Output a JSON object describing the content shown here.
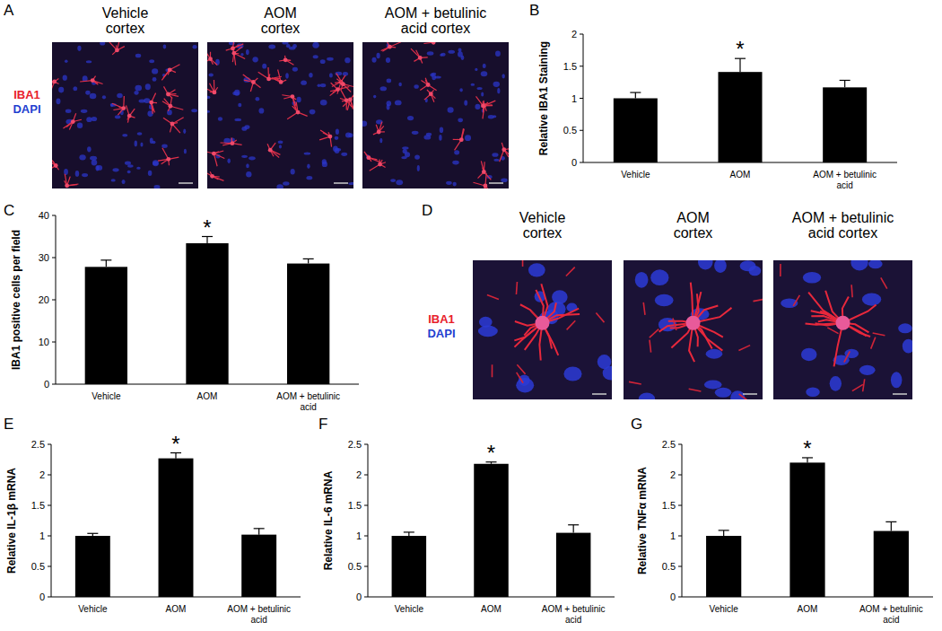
{
  "chart_data": [
    {
      "panel": "B",
      "type": "bar",
      "y_label": "Relative IBA1 Staining",
      "categories": [
        "Vehicle",
        "AOM",
        "AOM + betulinic acid"
      ],
      "values": [
        1.0,
        1.41,
        1.17
      ],
      "errors": [
        0.09,
        0.21,
        0.11
      ],
      "color": "#000000",
      "ylim": [
        0,
        2
      ],
      "yticks": [
        0,
        0.5,
        1,
        1.5,
        2
      ],
      "annotations": [
        {
          "text": "*",
          "category": "AOM"
        }
      ]
    },
    {
      "panel": "C",
      "type": "bar",
      "y_label": "IBA1 positive cells per field",
      "categories": [
        "Vehicle",
        "AOM",
        "AOM + betulinic acid"
      ],
      "values": [
        27.8,
        33.4,
        28.6
      ],
      "errors": [
        1.6,
        1.6,
        1.1
      ],
      "color": "#000000",
      "ylim": [
        0,
        40
      ],
      "yticks": [
        0,
        10,
        20,
        30,
        40
      ],
      "annotations": [
        {
          "text": "*",
          "category": "AOM"
        }
      ]
    },
    {
      "panel": "E",
      "type": "bar",
      "y_label": "Relative IL-1β mRNA",
      "categories": [
        "Vehicle",
        "AOM",
        "AOM + betulinic acid"
      ],
      "values": [
        1.0,
        2.27,
        1.02
      ],
      "errors": [
        0.04,
        0.09,
        0.1
      ],
      "color": "#000000",
      "ylim": [
        0,
        2.5
      ],
      "yticks": [
        0,
        0.5,
        1,
        1.5,
        2,
        2.5
      ],
      "annotations": [
        {
          "text": "*",
          "category": "AOM"
        }
      ]
    },
    {
      "panel": "F",
      "type": "bar",
      "y_label": "Relative IL-6 mRNA",
      "categories": [
        "Vehicle",
        "AOM",
        "AOM + betulinic acid"
      ],
      "values": [
        1.0,
        2.18,
        1.05
      ],
      "errors": [
        0.06,
        0.03,
        0.13
      ],
      "color": "#000000",
      "ylim": [
        0,
        2.5
      ],
      "yticks": [
        0,
        0.5,
        1,
        1.5,
        2,
        2.5
      ],
      "annotations": [
        {
          "text": "*",
          "category": "AOM"
        }
      ]
    },
    {
      "panel": "G",
      "type": "bar",
      "y_label": "Relative TNFα mRNA",
      "categories": [
        "Vehicle",
        "AOM",
        "AOM + betulinic acid"
      ],
      "values": [
        1.0,
        2.2,
        1.08
      ],
      "errors": [
        0.09,
        0.08,
        0.15
      ],
      "color": "#000000",
      "ylim": [
        0,
        2.5
      ],
      "yticks": [
        0,
        0.5,
        1,
        1.5,
        2,
        2.5
      ],
      "annotations": [
        {
          "text": "*",
          "category": "AOM"
        }
      ]
    }
  ],
  "image_panels": [
    {
      "panel": "A",
      "titles": [
        "Vehicle cortex",
        "AOM cortex",
        "AOM + betulinic acid cortex"
      ],
      "stains": [
        {
          "text": "IBA1",
          "color": "#e8202a"
        },
        {
          "text": "DAPI",
          "color": "#1f3fd0"
        }
      ]
    },
    {
      "panel": "D",
      "titles": [
        "Vehicle cortex",
        "AOM cortex",
        "AOM + betulinic acid cortex"
      ],
      "stains": [
        {
          "text": "IBA1",
          "color": "#e8202a"
        },
        {
          "text": "DAPI",
          "color": "#1f3fd0"
        }
      ]
    }
  ]
}
